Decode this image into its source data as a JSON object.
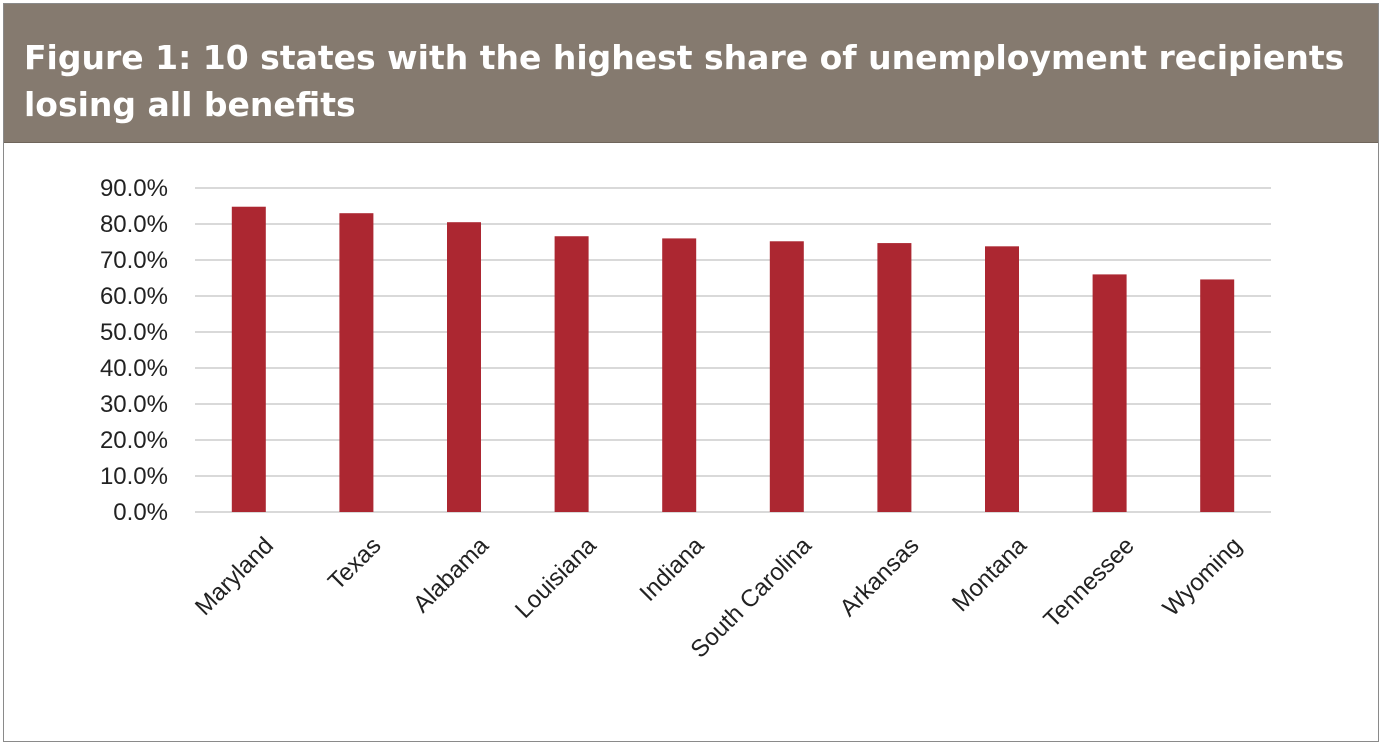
{
  "header": {
    "title": "Figure 1: 10 states with the highest share of unemployment recipients losing all benefits"
  },
  "colors": {
    "header_bg": "#857a6f",
    "bar": "#ac2731",
    "grid": "#d9d9d9",
    "text": "#222222"
  },
  "chart_data": {
    "type": "bar",
    "title": "",
    "xlabel": "",
    "ylabel": "",
    "categories": [
      "Maryland",
      "Texas",
      "Alabama",
      "Louisiana",
      "Indiana",
      "South Carolina",
      "Arkansas",
      "Montana",
      "Tennessee",
      "Wyoming"
    ],
    "values": [
      84.8,
      83.0,
      80.5,
      76.6,
      76.0,
      75.2,
      74.7,
      73.8,
      66.0,
      64.6
    ],
    "ylim": [
      0,
      90
    ],
    "yticks": [
      0,
      10,
      20,
      30,
      40,
      50,
      60,
      70,
      80,
      90
    ],
    "ytick_labels": [
      "0.0%",
      "10.0%",
      "20.0%",
      "30.0%",
      "40.0%",
      "50.0%",
      "60.0%",
      "70.0%",
      "80.0%",
      "90.0%"
    ],
    "grid": true,
    "legend": "none"
  }
}
